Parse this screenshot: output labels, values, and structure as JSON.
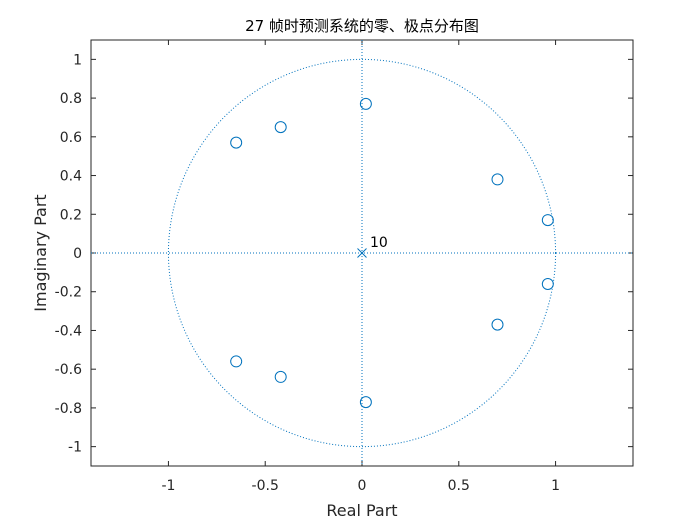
{
  "chart_data": {
    "type": "scatter",
    "title": "27 帧时预测系统的零、极点分布图",
    "xlabel": "Real Part",
    "ylabel": "Imaginary Part",
    "xlim": [
      -1.4,
      1.4
    ],
    "ylim": [
      -1.1,
      1.1
    ],
    "xticks": [
      -1,
      -0.5,
      0,
      0.5,
      1
    ],
    "xtick_labels": [
      "-1",
      "-0.5",
      "0",
      "0.5",
      "1"
    ],
    "yticks": [
      1,
      0.8,
      0.6,
      0.4,
      0.2,
      0,
      -0.2,
      -0.4,
      -0.6,
      -0.8,
      -1
    ],
    "ytick_labels": [
      "1",
      "0.8",
      "0.6",
      "0.4",
      "0.2",
      "0",
      "-0.2",
      "-0.4",
      "-0.6",
      "-0.8",
      "-1"
    ],
    "unit_circle": true,
    "grid": false,
    "color": "#0072BD",
    "zeros": [
      {
        "x": 0.02,
        "y": 0.77
      },
      {
        "x": -0.42,
        "y": 0.65
      },
      {
        "x": -0.65,
        "y": 0.57
      },
      {
        "x": 0.7,
        "y": 0.38
      },
      {
        "x": 0.96,
        "y": 0.17
      },
      {
        "x": 0.96,
        "y": -0.16
      },
      {
        "x": 0.7,
        "y": -0.37
      },
      {
        "x": -0.65,
        "y": -0.56
      },
      {
        "x": -0.42,
        "y": -0.64
      },
      {
        "x": 0.02,
        "y": -0.77
      }
    ],
    "poles": [
      {
        "x": 0,
        "y": 0,
        "label": "10"
      }
    ]
  }
}
